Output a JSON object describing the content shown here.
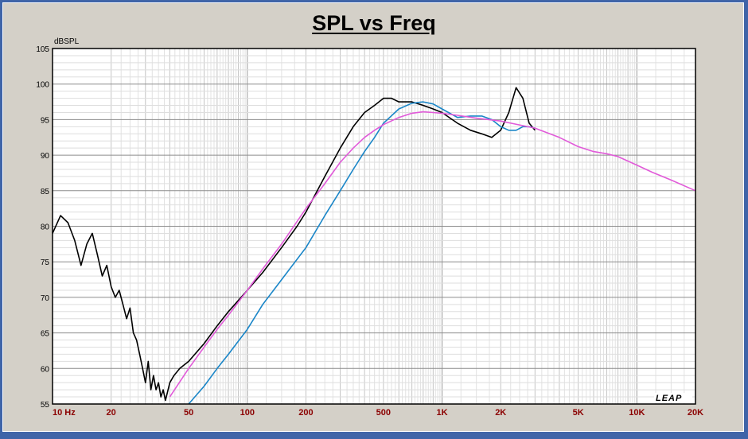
{
  "chart_data": {
    "type": "line",
    "title": "SPL vs Freq",
    "ylabel": "dBSPL",
    "xlabel": "",
    "xscale": "log",
    "xlim": [
      10,
      20000
    ],
    "ylim": [
      55,
      105
    ],
    "yticks": [
      55,
      60,
      65,
      70,
      75,
      80,
      85,
      90,
      95,
      100,
      105
    ],
    "xticks": [
      {
        "value": 10,
        "label": "10  Hz"
      },
      {
        "value": 20,
        "label": "20"
      },
      {
        "value": 50,
        "label": "50"
      },
      {
        "value": 100,
        "label": "100"
      },
      {
        "value": 200,
        "label": "200"
      },
      {
        "value": 500,
        "label": "500"
      },
      {
        "value": 1000,
        "label": "1K"
      },
      {
        "value": 2000,
        "label": "2K"
      },
      {
        "value": 5000,
        "label": "5K"
      },
      {
        "value": 10000,
        "label": "10K"
      },
      {
        "value": 20000,
        "label": "20K"
      }
    ],
    "grid": true,
    "logo_text": "LEAP",
    "series": [
      {
        "color": "#000000",
        "x": [
          10,
          11,
          12,
          13,
          14,
          15,
          16,
          17,
          18,
          19,
          20,
          21,
          22,
          23,
          24,
          25,
          26,
          27,
          28,
          29,
          30,
          31,
          32,
          33,
          34,
          35,
          36,
          37,
          38,
          40,
          42,
          45,
          50,
          60,
          70,
          80,
          100,
          120,
          150,
          180,
          200,
          250,
          300,
          350,
          400,
          450,
          500,
          550,
          600,
          700,
          800,
          900,
          1000,
          1200,
          1400,
          1600,
          1800,
          2000,
          2200,
          2400,
          2600,
          2800,
          3000
        ],
        "y": [
          79,
          81.5,
          80.5,
          78,
          74.5,
          77.5,
          79,
          76,
          73,
          74.5,
          71.5,
          70,
          71,
          69,
          67,
          68.5,
          65,
          64,
          62,
          60,
          58,
          61,
          57,
          59,
          57,
          58,
          56,
          57,
          55.5,
          58,
          59,
          60,
          61,
          63.5,
          66,
          68,
          71,
          73.5,
          77,
          80,
          82,
          87,
          91,
          94,
          96,
          97,
          98,
          98,
          97.5,
          97.5,
          97,
          96.5,
          96,
          94.5,
          93.5,
          93,
          92.5,
          93.5,
          96,
          99.5,
          98,
          94.5,
          93.5
        ]
      },
      {
        "color": "#1a86c8",
        "x": [
          50,
          60,
          70,
          80,
          100,
          120,
          150,
          200,
          250,
          300,
          350,
          400,
          450,
          500,
          600,
          700,
          800,
          900,
          1000,
          1200,
          1400,
          1600,
          1800,
          2000,
          2200,
          2400,
          2600,
          2800,
          3000
        ],
        "y": [
          55,
          57.5,
          60,
          62,
          65.5,
          69,
          72.5,
          77,
          81.5,
          85,
          88,
          90.5,
          92.5,
          94.5,
          96.5,
          97.3,
          97.5,
          97.2,
          96.5,
          95.3,
          95.5,
          95.5,
          95,
          94,
          93.5,
          93.5,
          94,
          94,
          93.8
        ]
      },
      {
        "color": "#e15ad9",
        "x": [
          40,
          50,
          60,
          70,
          80,
          100,
          120,
          150,
          200,
          250,
          300,
          350,
          400,
          450,
          500,
          600,
          700,
          800,
          900,
          1000,
          1200,
          1500,
          2000,
          3000,
          4000,
          5000,
          6000,
          7000,
          8000,
          10000,
          12000,
          15000,
          20000
        ],
        "y": [
          56,
          60,
          63,
          65.5,
          67.5,
          71,
          74,
          77.5,
          82.5,
          86,
          89,
          91,
          92.5,
          93.5,
          94.3,
          95.3,
          95.9,
          96.1,
          96,
          95.9,
          95.6,
          95.2,
          94.8,
          93.8,
          92.5,
          91.2,
          90.5,
          90.2,
          89.8,
          88.6,
          87.6,
          86.5,
          85
        ]
      }
    ]
  }
}
